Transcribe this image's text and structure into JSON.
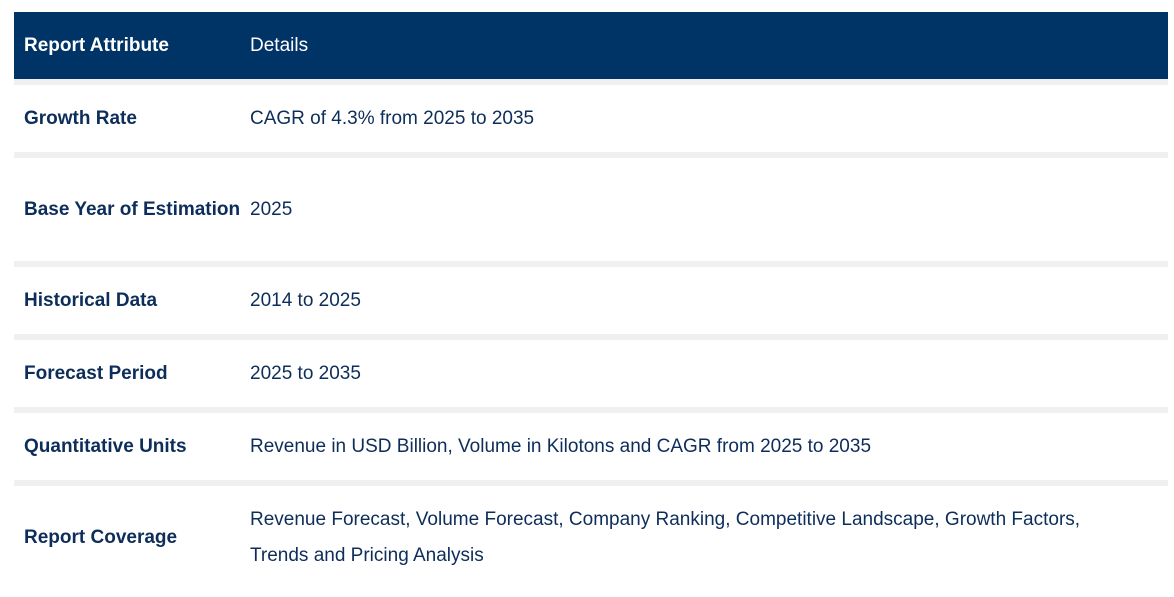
{
  "table": {
    "header": {
      "attribute": "Report Attribute",
      "details": "Details"
    },
    "rows": [
      {
        "attribute": "Growth Rate",
        "details": "CAGR of 4.3% from 2025 to 2035"
      },
      {
        "attribute": "Base Year of Estimation",
        "details": "2025"
      },
      {
        "attribute": "Historical Data",
        "details": "2014 to 2025"
      },
      {
        "attribute": "Forecast Period",
        "details": "2025 to 2035"
      },
      {
        "attribute": "Quantitative Units",
        "details": "Revenue in USD Billion, Volume in Kilotons and CAGR from 2025 to 2035"
      },
      {
        "attribute": "Report Coverage",
        "details": "Revenue Forecast, Volume Forecast, Company Ranking, Competitive Landscape, Growth Factors, Trends and Pricing Analysis"
      }
    ]
  },
  "colors": {
    "header_bg": "#003366",
    "header_text": "#ffffff",
    "body_text": "#0d2d5a",
    "row_bg": "#ffffff",
    "separator": "#f0f0f0"
  }
}
